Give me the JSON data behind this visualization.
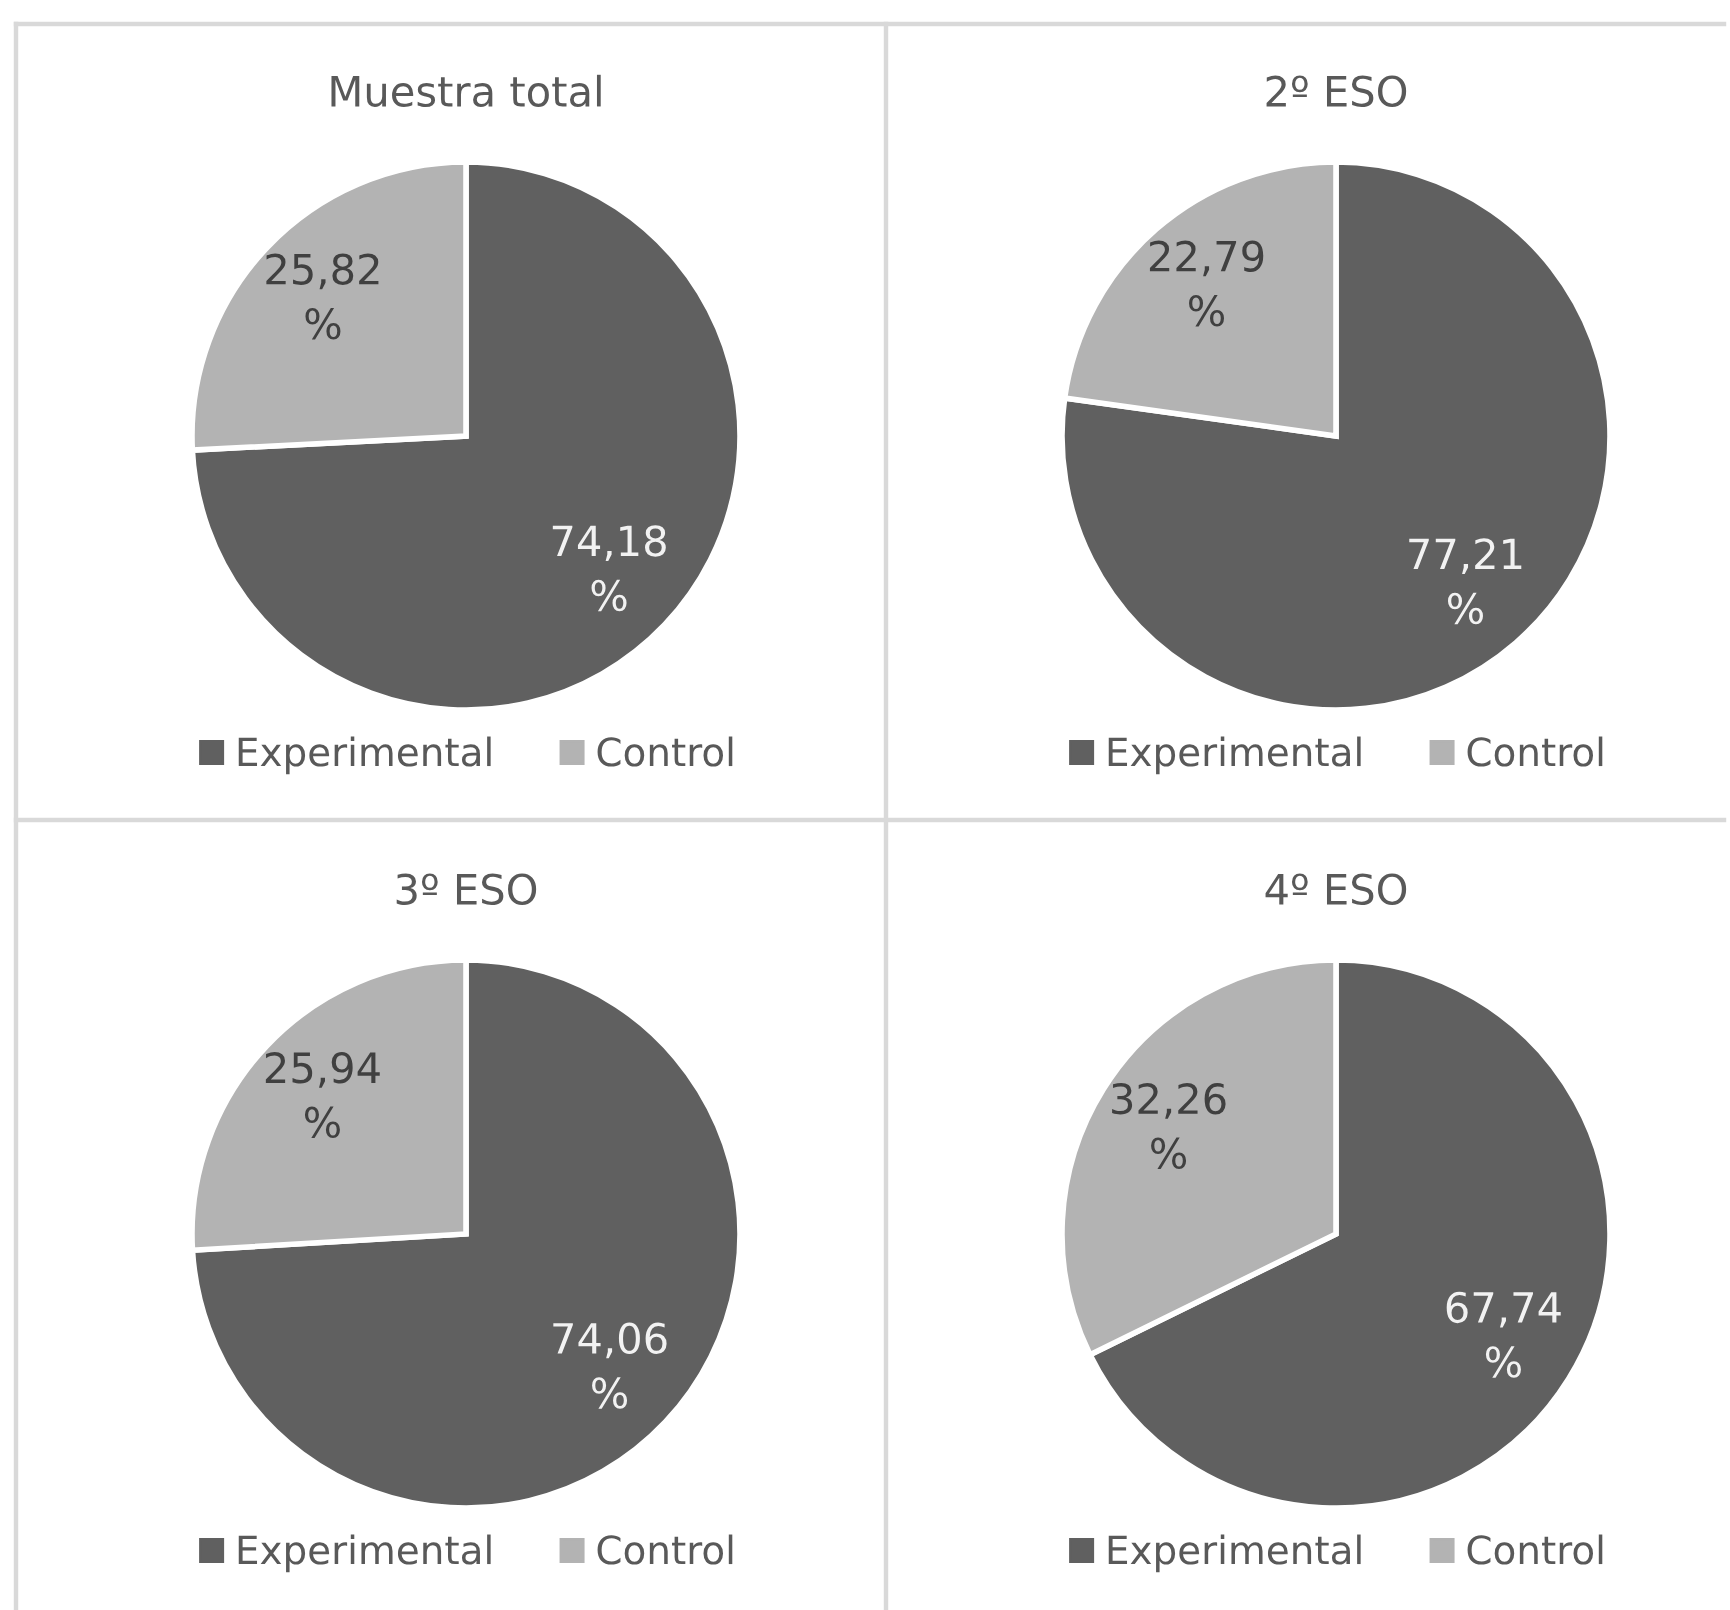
{
  "chart_data": [
    {
      "type": "pie",
      "title": "Muestra total",
      "categories": [
        "Experimental",
        "Control"
      ],
      "values": [
        74.18,
        25.82
      ],
      "colors": [
        "#606060",
        "#b3b3b3"
      ],
      "value_labels": [
        "74,18 %",
        "25,82 %"
      ],
      "legend": "bottom"
    },
    {
      "type": "pie",
      "title": "2º ESO",
      "categories": [
        "Experimental",
        "Control"
      ],
      "values": [
        77.21,
        22.79
      ],
      "colors": [
        "#606060",
        "#b3b3b3"
      ],
      "value_labels": [
        "77,21 %",
        "22,79 %"
      ],
      "legend": "bottom"
    },
    {
      "type": "pie",
      "title": "3º ESO",
      "categories": [
        "Experimental",
        "Control"
      ],
      "values": [
        74.06,
        25.94
      ],
      "colors": [
        "#606060",
        "#b3b3b3"
      ],
      "value_labels": [
        "74,06 %",
        "25,94 %"
      ],
      "legend": "bottom"
    },
    {
      "type": "pie",
      "title": "4º ESO",
      "categories": [
        "Experimental",
        "Control"
      ],
      "values": [
        67.74,
        32.26
      ],
      "colors": [
        "#606060",
        "#b3b3b3"
      ],
      "value_labels": [
        "67,74 %",
        "32,26 %"
      ],
      "legend": "bottom"
    }
  ]
}
